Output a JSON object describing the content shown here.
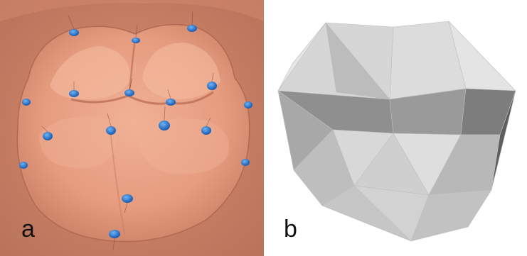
{
  "panels": {
    "a": {
      "label": "a",
      "subject": "tooth-occlusal-surface-with-landmarks",
      "colors": {
        "tooth": "#e69c7f",
        "tooth_shadow": "#c97a60",
        "tooth_highlight": "#f4b79c",
        "marker": "#1e6fc8",
        "marker_highlight": "#59a6f0"
      }
    },
    "b": {
      "label": "b",
      "subject": "polyhedral-mesh-approximation",
      "colors": {
        "light": "#d9d9d9",
        "mid": "#bdbdbd",
        "dark": "#8f8f8f",
        "darker": "#707070"
      }
    }
  }
}
